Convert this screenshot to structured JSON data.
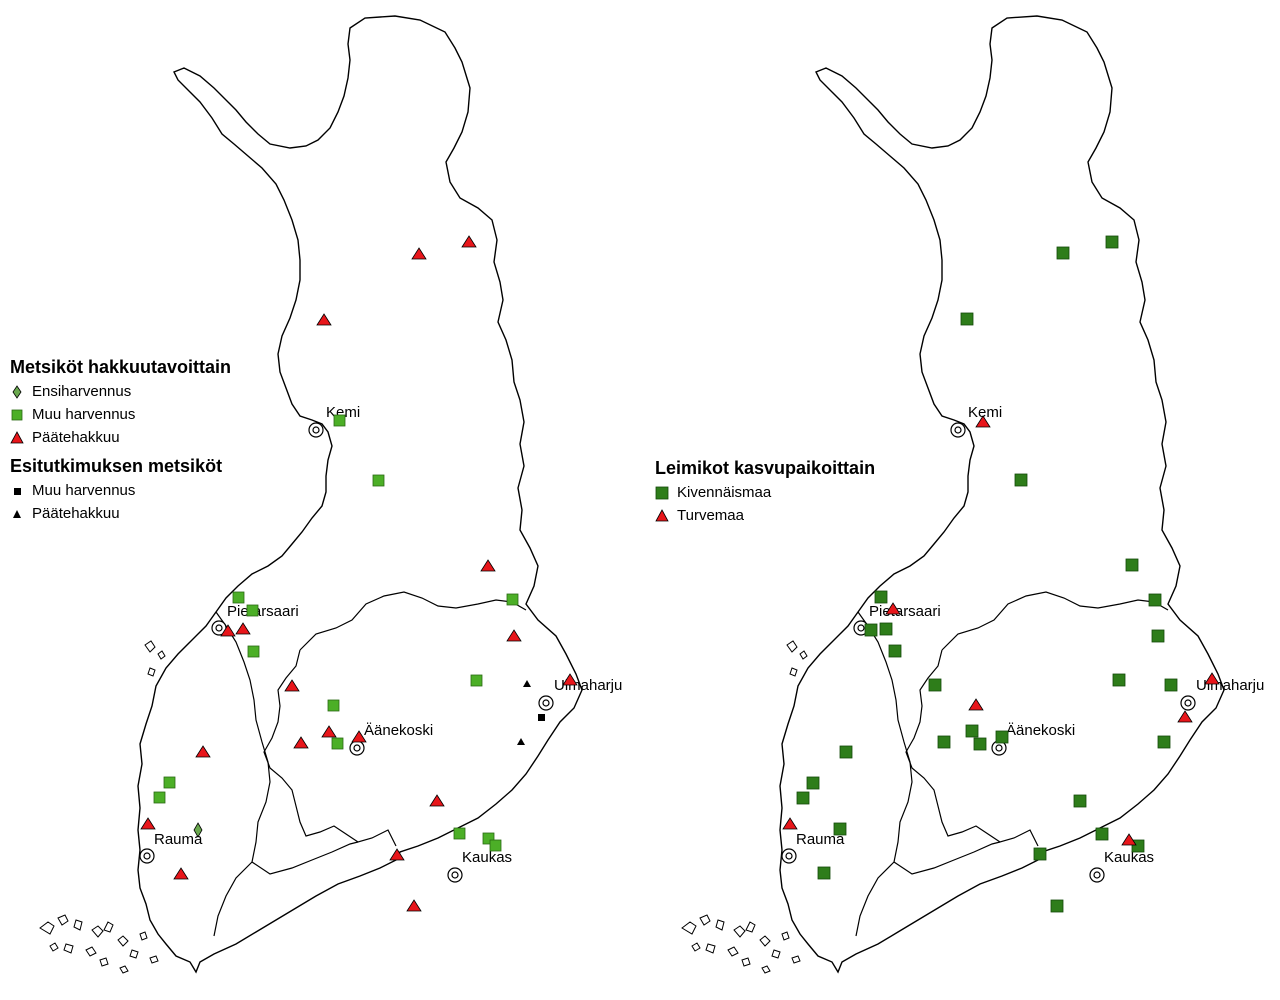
{
  "left_map": {
    "legend": {
      "title": "Metsiköt hakkuutavoittain",
      "items": [
        {
          "label": "Ensiharvennus",
          "symbol": "diamond",
          "color": "#6aa84f"
        },
        {
          "label": "Muu harvennus",
          "symbol": "square",
          "color": "#4caf27"
        },
        {
          "label": "Päätehakkuu",
          "symbol": "triangle",
          "color": "#e8161b"
        }
      ],
      "title2": "Esitutkimuksen metsiköt",
      "items2": [
        {
          "label": "Muu harvennus",
          "symbol": "square",
          "color": "#000000"
        },
        {
          "label": "Päätehakkuu",
          "symbol": "triangle",
          "color": "#000000"
        }
      ]
    },
    "cities": [
      "Kemi",
      "Pietarsaari",
      "Uimaharju",
      "Äänekoski",
      "Rauma",
      "Kaukas"
    ]
  },
  "right_map": {
    "legend": {
      "title": "Leimikot kasvupaikoittain",
      "items": [
        {
          "label": "Kivennäismaa",
          "symbol": "square",
          "color": "#2e7d1a"
        },
        {
          "label": "Turvemaa",
          "symbol": "triangle",
          "color": "#e8161b"
        }
      ]
    },
    "cities": [
      "Kemi",
      "Pietarsaari",
      "Uimaharju",
      "Äänekoski",
      "Rauma",
      "Kaukas"
    ]
  }
}
